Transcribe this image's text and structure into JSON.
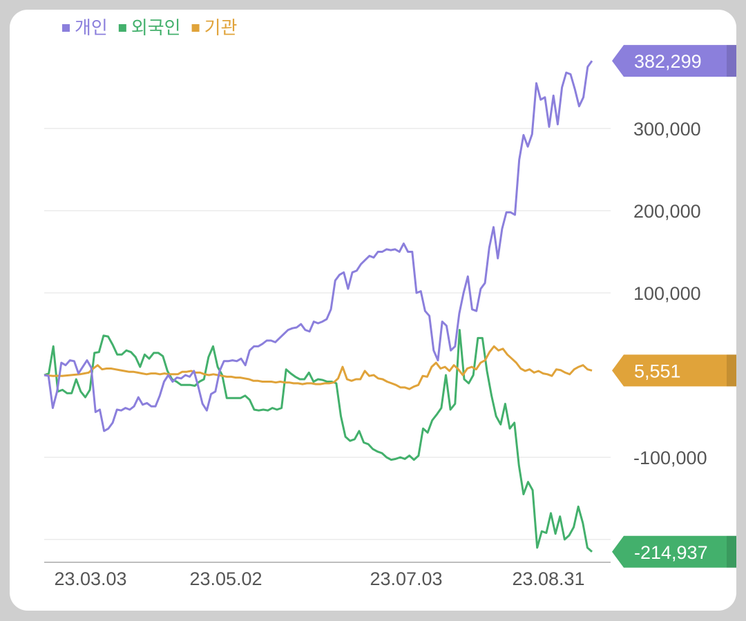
{
  "chart_data": {
    "type": "line",
    "x_ticks": [
      "23.03.03",
      "23.05.02",
      "23.07.03",
      "23.08.31"
    ],
    "y_ticks": [
      {
        "value": 300000,
        "label": "300,000"
      },
      {
        "value": 200000,
        "label": "200,000"
      },
      {
        "value": 100000,
        "label": "100,000"
      },
      {
        "value": -100000,
        "label": "-100,000"
      }
    ],
    "ylim": [
      -230000,
      400000
    ],
    "grid": true,
    "legend": "top-left",
    "series": [
      {
        "name": "개인",
        "color": "#8b7fdc",
        "last_label": "382,299",
        "values": [
          0,
          -1000,
          -40000,
          -20000,
          15000,
          12000,
          18000,
          17000,
          2000,
          10000,
          18000,
          9000,
          -45000,
          -42000,
          -68000,
          -65000,
          -58000,
          -42000,
          -43000,
          -40000,
          -42000,
          -38000,
          -27000,
          -36000,
          -34000,
          -38000,
          -38000,
          -25000,
          -8000,
          0,
          -8000,
          -3000,
          -4000,
          0,
          -2000,
          5000,
          -14000,
          -35000,
          -43000,
          -23000,
          -20000,
          5000,
          17000,
          17000,
          18000,
          17000,
          20000,
          12000,
          30000,
          35000,
          35000,
          38000,
          42000,
          42000,
          40000,
          45000,
          50000,
          55000,
          57000,
          58000,
          62000,
          55000,
          53000,
          65000,
          63000,
          65000,
          68000,
          80000,
          115000,
          122000,
          125000,
          105000,
          125000,
          127000,
          135000,
          140000,
          145000,
          143000,
          150000,
          150000,
          153000,
          152000,
          153000,
          150000,
          160000,
          150000,
          150000,
          100000,
          102000,
          78000,
          72000,
          30000,
          18000,
          65000,
          60000,
          30000,
          35000,
          75000,
          100000,
          120000,
          80000,
          78000,
          105000,
          112000,
          155000,
          180000,
          142000,
          178000,
          198000,
          198000,
          195000,
          262000,
          292000,
          278000,
          293000,
          355000,
          335000,
          338000,
          302000,
          340000,
          305000,
          350000,
          368000,
          366000,
          348000,
          327000,
          338000,
          375000,
          382299
        ]
      },
      {
        "name": "외국인",
        "color": "#43b06c",
        "last_label": "-214,937",
        "values": [
          0,
          2000,
          35000,
          -20000,
          -18000,
          -22000,
          -22000,
          -5000,
          -20000,
          -27000,
          -18000,
          27000,
          28000,
          48000,
          47000,
          37000,
          25000,
          25000,
          30000,
          28000,
          22000,
          10000,
          25000,
          20000,
          27000,
          27000,
          23000,
          5000,
          -5000,
          -8000,
          -12000,
          -12000,
          -12000,
          -13000,
          -8000,
          -5000,
          22000,
          35000,
          10000,
          0,
          -28000,
          -28000,
          -28000,
          -28000,
          -25000,
          -30000,
          -42000,
          -43000,
          -42000,
          -43000,
          -40000,
          -42000,
          -40000,
          7000,
          2000,
          -2000,
          -5000,
          -5000,
          3000,
          -8000,
          -5000,
          -6000,
          -8000,
          -8000,
          -10000,
          -50000,
          -75000,
          -80000,
          -78000,
          -68000,
          -82000,
          -84000,
          -90000,
          -93000,
          -95000,
          -100000,
          -103000,
          -102000,
          -100000,
          -102000,
          -98000,
          -103000,
          -98000,
          -65000,
          -70000,
          -55000,
          -48000,
          -40000,
          0,
          -42000,
          -35000,
          55000,
          -5000,
          -10000,
          0,
          45000,
          45000,
          5000,
          -25000,
          -50000,
          -60000,
          -35000,
          -65000,
          -58000,
          -110000,
          -145000,
          -130000,
          -140000,
          -210000,
          -190000,
          -192000,
          -168000,
          -193000,
          -172000,
          -200000,
          -195000,
          -185000,
          -160000,
          -180000,
          -210000,
          -214937
        ]
      },
      {
        "name": "기관",
        "color": "#e0a33a",
        "last_label": "5,551",
        "values": [
          0,
          -500,
          -1000,
          -800,
          -1000,
          -500,
          0,
          500,
          1000,
          2000,
          3000,
          8000,
          12000,
          7000,
          8000,
          8000,
          7000,
          6000,
          5000,
          4000,
          4000,
          3000,
          2000,
          1000,
          2000,
          2000,
          1000,
          2000,
          1000,
          1000,
          1000,
          4000,
          4000,
          5000,
          3000,
          3000,
          1000,
          0,
          1000,
          0,
          -1000,
          -2000,
          -2000,
          -3000,
          -3000,
          -4000,
          -5000,
          -7000,
          -7000,
          -8000,
          -8000,
          -8000,
          -9000,
          -8000,
          -9000,
          -9000,
          -10000,
          -10000,
          -11000,
          -10000,
          -10000,
          -11000,
          -11000,
          -10000,
          -10000,
          -9000,
          -4000,
          10000,
          -5000,
          -7000,
          -5000,
          -5000,
          5000,
          -1000,
          0,
          -4000,
          -5000,
          -8000,
          -10000,
          -12000,
          -15000,
          -15000,
          -17000,
          -14000,
          -12000,
          -1000,
          -2000,
          10000,
          15000,
          8000,
          10000,
          5000,
          12000,
          7000,
          0,
          8000,
          10000,
          7000,
          15000,
          18000,
          28000,
          35000,
          30000,
          32000,
          25000,
          20000,
          15000,
          8000,
          5000,
          7000,
          3000,
          5000,
          2000,
          1000,
          -1000,
          7000,
          6000,
          3000,
          1000,
          7000,
          10000,
          12000,
          7000,
          5551
        ]
      }
    ]
  }
}
